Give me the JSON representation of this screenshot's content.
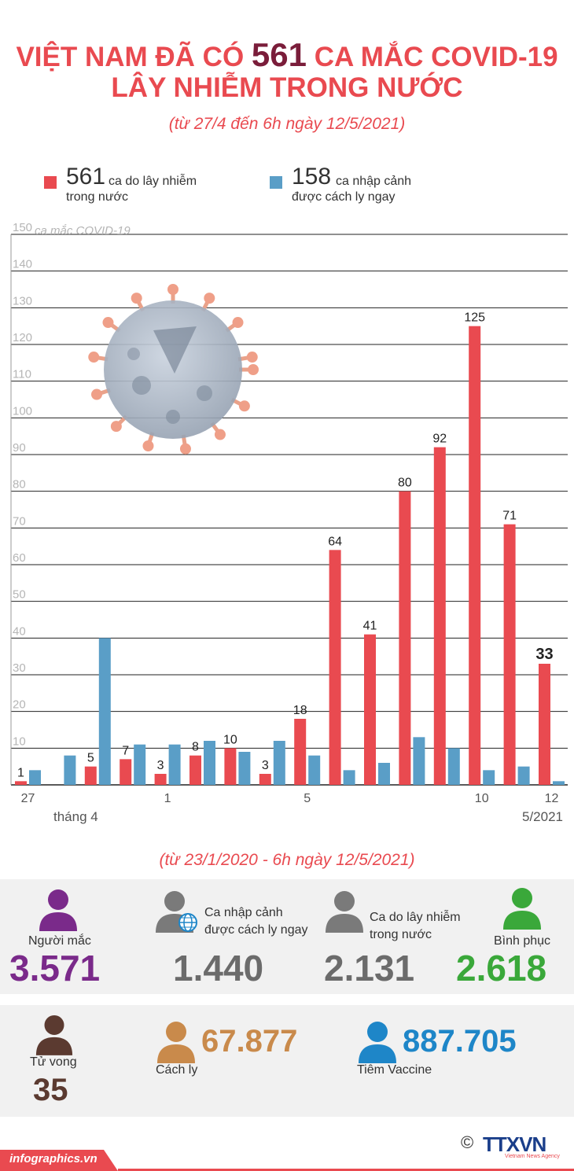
{
  "header": {
    "title_prefix": "VIỆT NAM ĐÃ CÓ",
    "title_number": "561",
    "title_suffix": "CA MẮC COVID-19",
    "title_line2": "LÂY NHIỄM TRONG NƯỚC",
    "subtitle": "(từ 27/4 đến 6h ngày 12/5/2021)"
  },
  "legend": {
    "domestic": {
      "number": "561",
      "line1": "ca do lây nhiễm",
      "line2": "trong nước",
      "color": "#e94a50"
    },
    "imported": {
      "number": "158",
      "line1": "ca nhập cảnh",
      "line2": "được cách ly ngay",
      "color": "#5a9ec7"
    }
  },
  "chart_data": {
    "type": "bar",
    "ylabel": "ca mắc COVID-19",
    "ylim": [
      0,
      150
    ],
    "yticks": [
      10,
      20,
      30,
      40,
      50,
      60,
      70,
      80,
      90,
      100,
      110,
      120,
      130,
      140,
      150
    ],
    "categories": [
      "27",
      "28",
      "29",
      "30",
      "1",
      "2",
      "3",
      "4",
      "5",
      "6",
      "7",
      "8",
      "9",
      "10",
      "11",
      "12"
    ],
    "x_tick_labels": {
      "0": "27",
      "4": "1",
      "8": "5",
      "13": "10",
      "15": "12"
    },
    "month_labels": {
      "left": "tháng 4",
      "right": "5/2021"
    },
    "series": [
      {
        "name": "ca do lây nhiễm trong nước",
        "color": "#e94a50",
        "values": [
          1,
          null,
          5,
          7,
          3,
          8,
          10,
          3,
          18,
          64,
          41,
          80,
          92,
          125,
          71,
          33
        ]
      },
      {
        "name": "ca nhập cảnh được cách ly ngay",
        "color": "#5a9ec7",
        "values": [
          4,
          8,
          40,
          11,
          11,
          12,
          9,
          12,
          8,
          4,
          6,
          13,
          10,
          4,
          5,
          1
        ]
      }
    ],
    "highlight_last_label": true
  },
  "totals": {
    "period": "(từ 23/1/2020 - 6h ngày 12/5/2021)",
    "infected": {
      "label": "Người mắc",
      "value": "3.571",
      "color": "#7a2a8a"
    },
    "imported": {
      "label_line1": "Ca nhập cảnh",
      "label_line2": "được cách ly ngay",
      "value": "1.440",
      "color": "#6b6b6b"
    },
    "domestic": {
      "label_line1": "Ca do lây nhiễm",
      "label_line2": "trong nước",
      "value": "2.131",
      "color": "#6b6b6b"
    },
    "recovered": {
      "label": "Bình phục",
      "value": "2.618",
      "color": "#3aa83a"
    },
    "deaths": {
      "label": "Tử vong",
      "value": "35",
      "color": "#5b3a30"
    },
    "quarantine": {
      "label": "Cách ly",
      "value": "67.877",
      "color": "#c98a4b"
    },
    "vaccine": {
      "label": "Tiêm Vaccine",
      "value": "887.705",
      "color": "#1e86c8"
    }
  },
  "footer": {
    "site": "infographics.vn",
    "copyright": "©",
    "agency": "TTXVN",
    "agency_sub": "Vietnam News Agency"
  }
}
